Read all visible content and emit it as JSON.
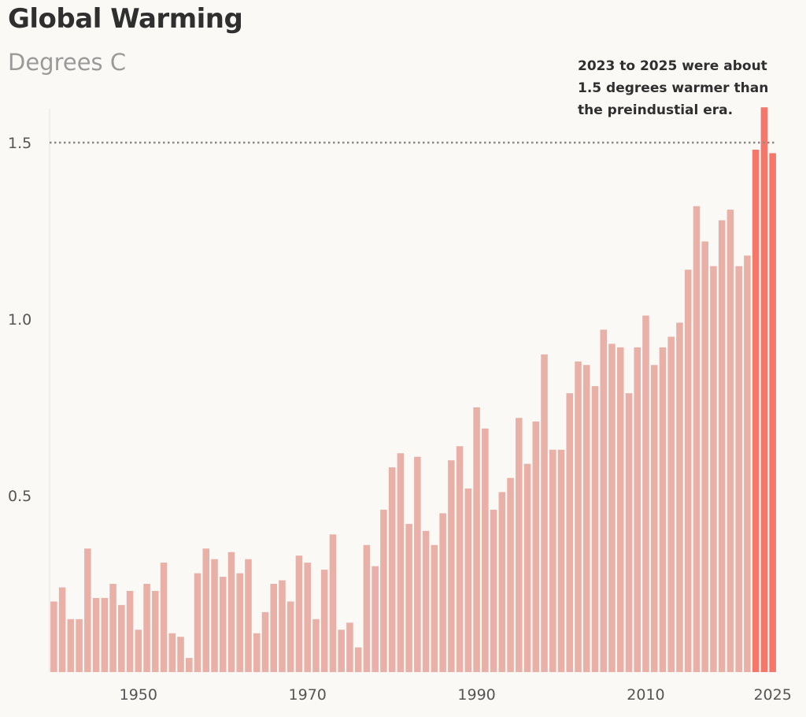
{
  "chart_data": {
    "type": "bar",
    "title": "Global Warming",
    "subtitle": "Degrees C",
    "xlabel": "",
    "ylabel": "",
    "ylim": [
      0,
      1.6
    ],
    "yticks": [
      "0.5",
      "1.0",
      "1.5"
    ],
    "ytick_values": [
      0.5,
      1.0,
      1.5
    ],
    "xticks": [
      "1950",
      "1970",
      "1990",
      "2010",
      "2025"
    ],
    "xtick_values": [
      1950,
      1970,
      1990,
      2010,
      2025
    ],
    "reference_line": {
      "value": 1.5,
      "style": "dotted"
    },
    "annotation": [
      "2023 to 2025 were about",
      "1.5 degrees warmer than",
      "the preindustial era."
    ],
    "highlight_years": [
      2023,
      2024,
      2025
    ],
    "colors": {
      "bar": "#e9b0a8",
      "highlight": "#f6766a",
      "reference_line": "#8a8a8a"
    },
    "grid": false,
    "categories": [
      1940,
      1941,
      1942,
      1943,
      1944,
      1945,
      1946,
      1947,
      1948,
      1949,
      1950,
      1951,
      1952,
      1953,
      1954,
      1955,
      1956,
      1957,
      1958,
      1959,
      1960,
      1961,
      1962,
      1963,
      1964,
      1965,
      1966,
      1967,
      1968,
      1969,
      1970,
      1971,
      1972,
      1973,
      1974,
      1975,
      1976,
      1977,
      1978,
      1979,
      1980,
      1981,
      1982,
      1983,
      1984,
      1985,
      1986,
      1987,
      1988,
      1989,
      1990,
      1991,
      1992,
      1993,
      1994,
      1995,
      1996,
      1997,
      1998,
      1999,
      2000,
      2001,
      2002,
      2003,
      2004,
      2005,
      2006,
      2007,
      2008,
      2009,
      2010,
      2011,
      2012,
      2013,
      2014,
      2015,
      2016,
      2017,
      2018,
      2019,
      2020,
      2021,
      2022,
      2023,
      2024,
      2025
    ],
    "values": [
      0.2,
      0.24,
      0.15,
      0.15,
      0.35,
      0.21,
      0.21,
      0.25,
      0.19,
      0.23,
      0.12,
      0.25,
      0.23,
      0.31,
      0.11,
      0.1,
      0.04,
      0.28,
      0.35,
      0.32,
      0.27,
      0.34,
      0.28,
      0.32,
      0.11,
      0.17,
      0.25,
      0.26,
      0.2,
      0.33,
      0.31,
      0.15,
      0.29,
      0.39,
      0.12,
      0.14,
      0.07,
      0.36,
      0.3,
      0.46,
      0.58,
      0.62,
      0.42,
      0.61,
      0.4,
      0.36,
      0.45,
      0.6,
      0.64,
      0.52,
      0.75,
      0.69,
      0.46,
      0.51,
      0.55,
      0.72,
      0.59,
      0.71,
      0.9,
      0.63,
      0.63,
      0.79,
      0.88,
      0.87,
      0.81,
      0.97,
      0.93,
      0.92,
      0.79,
      0.92,
      1.01,
      0.87,
      0.92,
      0.95,
      0.99,
      1.14,
      1.32,
      1.22,
      1.15,
      1.28,
      1.31,
      1.15,
      1.18,
      1.48,
      1.6,
      1.47
    ]
  }
}
